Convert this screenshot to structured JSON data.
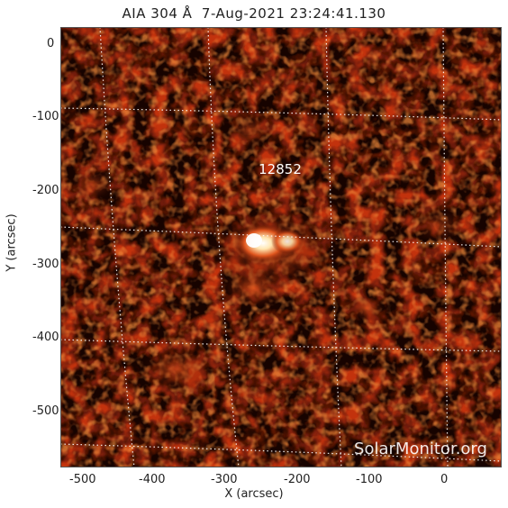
{
  "title": "AIA 304 Å  7-Aug-2021 23:24:41.130",
  "axes": {
    "xlabel": "X (arcsec)",
    "ylabel": "Y (arcsec)",
    "xlim": [
      -527,
      80
    ],
    "ylim": [
      -578,
      30
    ],
    "x_ticks": [
      "-500",
      "-400",
      "-300",
      "-200",
      "-100",
      "0"
    ],
    "y_ticks": [
      "0",
      "-100",
      "-200",
      "-300",
      "-400",
      "-500"
    ]
  },
  "region": {
    "label": "12852"
  },
  "watermark": "SolarMonitor.org",
  "colors": {
    "background": "#000000",
    "hot": "#fff4d6",
    "mid": "#d2401a",
    "low": "#5a0d00",
    "grid": "#ffffff"
  }
}
